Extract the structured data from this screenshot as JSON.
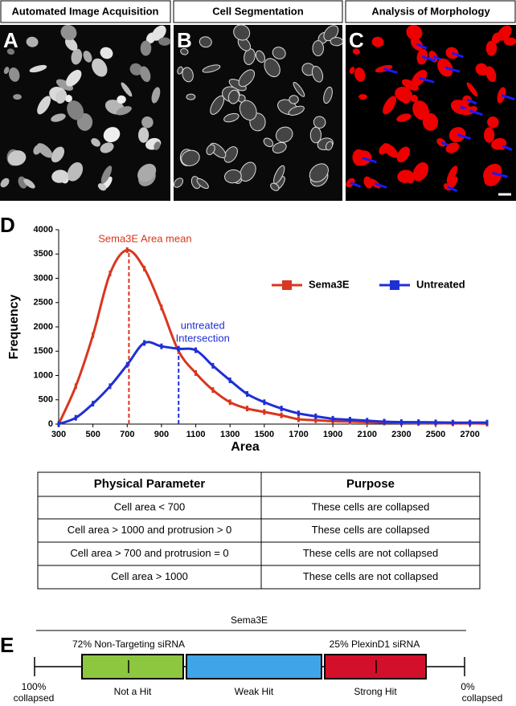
{
  "panels": {
    "a": {
      "letter": "A",
      "header": "Automated Image Acquisition"
    },
    "b": {
      "letter": "B",
      "header": "Cell Segmentation"
    },
    "c": {
      "letter": "C",
      "header": "Analysis of Morphology"
    },
    "d": {
      "letter": "D"
    },
    "e": {
      "letter": "E"
    }
  },
  "chart_data": {
    "type": "line",
    "x_label": "Area",
    "y_label": "Frequency",
    "x": [
      300,
      400,
      500,
      600,
      700,
      800,
      900,
      1000,
      1100,
      1200,
      1300,
      1400,
      1500,
      1600,
      1700,
      1800,
      1900,
      2000,
      2100,
      2200,
      2300,
      2400,
      2500,
      2600,
      2700,
      2800
    ],
    "series": [
      {
        "name": "Sema3E",
        "color": "#d9361f",
        "values": [
          0,
          780,
          1830,
          3100,
          3580,
          3200,
          2400,
          1500,
          1050,
          700,
          450,
          320,
          250,
          180,
          100,
          80,
          60,
          50,
          40,
          30,
          25,
          20,
          20,
          15,
          15,
          10
        ]
      },
      {
        "name": "Untreated",
        "color": "#1f2fd6",
        "values": [
          0,
          130,
          420,
          780,
          1220,
          1670,
          1600,
          1550,
          1520,
          1200,
          900,
          620,
          450,
          320,
          220,
          160,
          110,
          90,
          70,
          50,
          40,
          40,
          35,
          30,
          30,
          30
        ]
      }
    ],
    "annotations": [
      {
        "lines": [
          "Sema3E Area mean"
        ],
        "x": 710,
        "color": "#d9361f"
      },
      {
        "lines": [
          "untreated",
          "Intersection"
        ],
        "x": 1000,
        "color": "#1f2fd6"
      }
    ],
    "xlim": [
      300,
      2800
    ],
    "xticks": [
      300,
      500,
      700,
      900,
      1100,
      1300,
      1500,
      1700,
      1900,
      2100,
      2300,
      2500,
      2700
    ],
    "ylim": [
      0,
      4000
    ],
    "yticks": [
      0,
      500,
      1000,
      1500,
      2000,
      2500,
      3000,
      3500,
      4000
    ]
  },
  "table": {
    "header": [
      "Physical Parameter",
      "Purpose"
    ],
    "rows": [
      [
        "Cell area < 700",
        "These cells are collapsed"
      ],
      [
        "Cell area > 1000 and protrusion > 0",
        "These cells are collapsed"
      ],
      [
        "Cell area > 700 and protrusion = 0",
        "These cells are not collapsed"
      ],
      [
        "Cell area > 1000",
        "These cells are not collapsed"
      ]
    ]
  },
  "scale": {
    "title": "Sema3E",
    "left_label": [
      "100%",
      "collapsed"
    ],
    "right_label": [
      "0%",
      "collapsed"
    ],
    "markers": [
      "72% Non-Targeting siRNA",
      "25% PlexinD1 siRNA"
    ],
    "segments": [
      {
        "label": "Not a Hit",
        "color": "#8dc63f"
      },
      {
        "label": "Weak Hit",
        "color": "#3fa5e8"
      },
      {
        "label": "Strong Hit",
        "color": "#d2102c"
      }
    ]
  }
}
